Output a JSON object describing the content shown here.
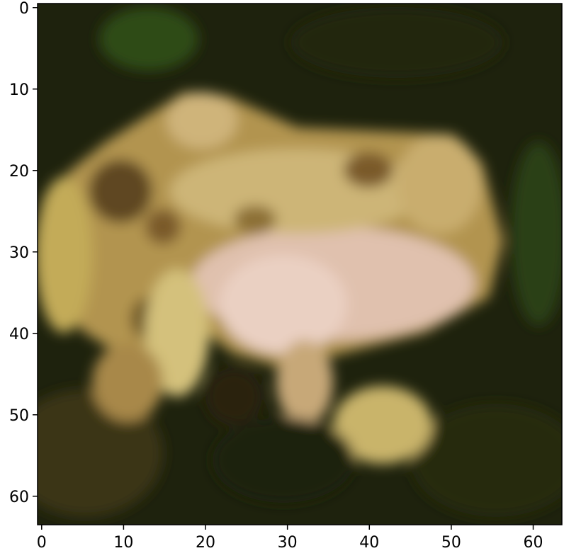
{
  "chart_data": {
    "type": "heatmap",
    "title": "",
    "xlabel": "",
    "ylabel": "",
    "xlim": [
      -0.5,
      63.5
    ],
    "ylim": [
      63.5,
      -0.5
    ],
    "grid": false,
    "legend": "none",
    "x_ticks": [
      0,
      10,
      20,
      30,
      40,
      50,
      60
    ],
    "y_ticks": [
      0,
      10,
      20,
      30,
      40,
      50,
      60
    ],
    "x_tick_labels": [
      "0",
      "10",
      "20",
      "30",
      "40",
      "50",
      "60"
    ],
    "y_tick_labels": [
      "0",
      "10",
      "20",
      "30",
      "40",
      "50",
      "60"
    ],
    "image_description_colors": {
      "background_dark": "#1c200c",
      "foliage_green": "#2f4a14",
      "frog_tan": "#b89a55",
      "frog_highlight": "#d8c38c",
      "belly_pink": "#e4c3b4",
      "shadow_brown": "#5a4420"
    }
  }
}
